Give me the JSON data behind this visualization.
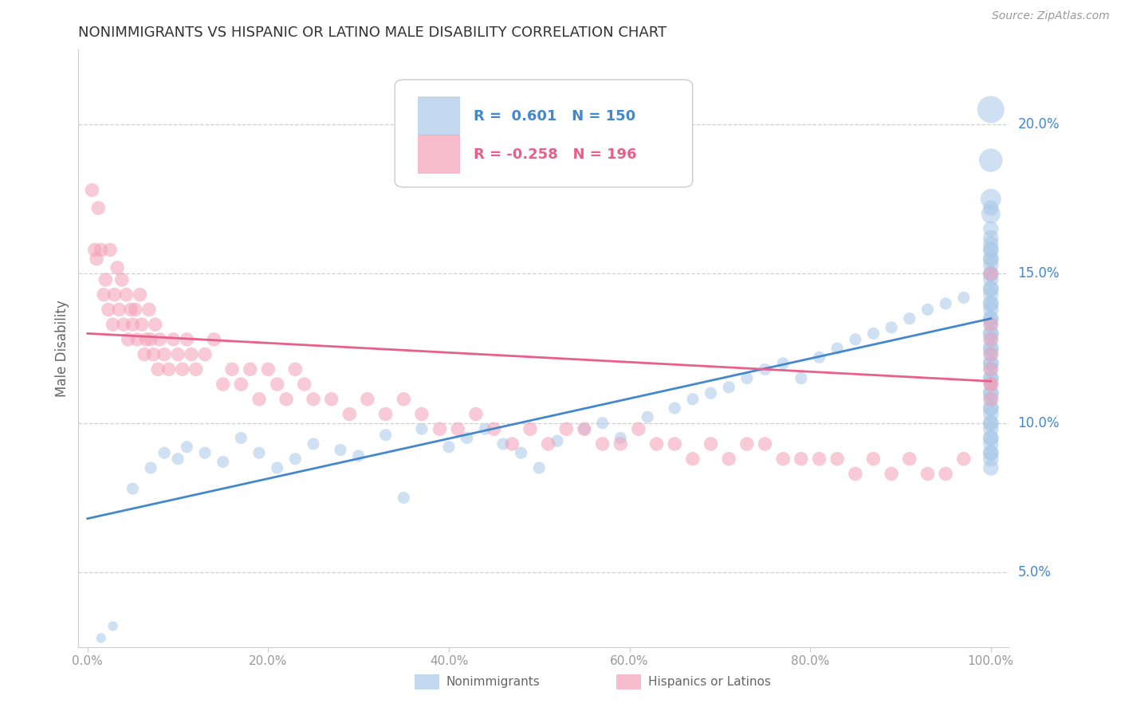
{
  "title": "NONIMMIGRANTS VS HISPANIC OR LATINO MALE DISABILITY CORRELATION CHART",
  "source": "Source: ZipAtlas.com",
  "ylabel": "Male Disability",
  "r_nonimmigrants": 0.601,
  "n_nonimmigrants": 150,
  "r_hispanics": -0.258,
  "n_hispanics": 196,
  "color_blue": "#a8c8e8",
  "color_pink": "#f4a0b8",
  "color_blue_line": "#4488cc",
  "color_pink_line": "#e8608a",
  "legend_blue_label": "Nonimmigrants",
  "legend_pink_label": "Hispanics or Latinos",
  "blue_trend_x0": 0.0,
  "blue_trend_y0": 6.8,
  "blue_trend_x1": 100.0,
  "blue_trend_y1": 13.5,
  "pink_trend_x0": 0.0,
  "pink_trend_y0": 13.0,
  "pink_trend_x1": 100.0,
  "pink_trend_y1": 11.4,
  "xlim": [
    0,
    100
  ],
  "ylim": [
    2.5,
    22.5
  ],
  "ytick_vals": [
    5.0,
    10.0,
    15.0,
    20.0
  ],
  "background_color": "#ffffff",
  "grid_color": "#d0d0d0",
  "title_color": "#333333",
  "axis_label_color": "#666666",
  "tick_label_color": "#999999"
}
